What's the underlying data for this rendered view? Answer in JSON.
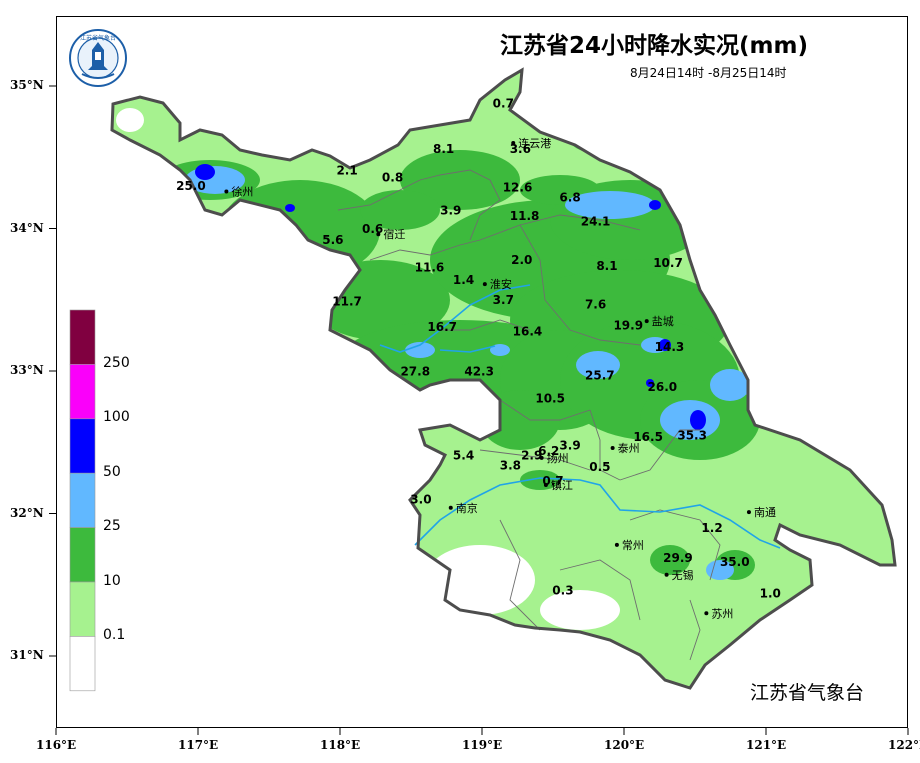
{
  "title": "江苏省24小时降水实况(mm)",
  "subtitle": "8月24日14时 -8月25日14时",
  "org": "江苏省气象台",
  "logo_text": "江苏省气象台",
  "colors": {
    "border": "#4d4d4d",
    "light_green": "#a6f28f",
    "green": "#3dba3d",
    "light_blue": "#61b8ff",
    "blue": "#0000ff",
    "magenta": "#fa00fa",
    "maroon": "#800040",
    "river": "#21a4e8",
    "white": "#ffffff"
  },
  "axes": {
    "x_ticks": [
      "116°E",
      "117°E",
      "118°E",
      "119°E",
      "120°E",
      "121°E",
      "122°E"
    ],
    "y_ticks": [
      "35°N",
      "34°N",
      "33°N",
      "32°N",
      "31°N"
    ]
  },
  "legend": {
    "labels": [
      "250",
      "100",
      "50",
      "25",
      "10",
      "0.1"
    ],
    "colors": [
      "#800040",
      "#fa00fa",
      "#0000ff",
      "#61b8ff",
      "#3dba3d",
      "#a6f28f",
      "#ffffff"
    ]
  },
  "cities": [
    {
      "name": "连云港",
      "lon": 119.22,
      "lat": 34.6
    },
    {
      "name": "徐州",
      "lon": 117.2,
      "lat": 34.26
    },
    {
      "name": "宿迁",
      "lon": 118.27,
      "lat": 33.96
    },
    {
      "name": "淮安",
      "lon": 119.02,
      "lat": 33.61
    },
    {
      "name": "盐城",
      "lon": 120.16,
      "lat": 33.35
    },
    {
      "name": "扬州",
      "lon": 119.42,
      "lat": 32.39
    },
    {
      "name": "泰州",
      "lon": 119.92,
      "lat": 32.46
    },
    {
      "name": "南京",
      "lon": 118.78,
      "lat": 32.04
    },
    {
      "name": "镇江",
      "lon": 119.45,
      "lat": 32.2
    },
    {
      "name": "南通",
      "lon": 120.88,
      "lat": 32.01
    },
    {
      "name": "常州",
      "lon": 119.95,
      "lat": 31.78
    },
    {
      "name": "无锡",
      "lon": 120.3,
      "lat": 31.57
    },
    {
      "name": "苏州",
      "lon": 120.58,
      "lat": 31.3
    }
  ],
  "rainfall": [
    {
      "value": "0.7",
      "lon": 119.15,
      "lat": 34.85
    },
    {
      "value": "8.1",
      "lon": 118.73,
      "lat": 34.53
    },
    {
      "value": "3.6",
      "lon": 119.27,
      "lat": 34.53
    },
    {
      "value": "2.1",
      "lon": 118.05,
      "lat": 34.38
    },
    {
      "value": "0.8",
      "lon": 118.37,
      "lat": 34.33
    },
    {
      "value": "25.0",
      "lon": 116.95,
      "lat": 34.27
    },
    {
      "value": "12.6",
      "lon": 119.25,
      "lat": 34.26
    },
    {
      "value": "6.8",
      "lon": 119.62,
      "lat": 34.19
    },
    {
      "value": "3.9",
      "lon": 118.78,
      "lat": 34.1
    },
    {
      "value": "11.8",
      "lon": 119.3,
      "lat": 34.06
    },
    {
      "value": "24.1",
      "lon": 119.8,
      "lat": 34.02
    },
    {
      "value": "0.6",
      "lon": 118.23,
      "lat": 33.97
    },
    {
      "value": "5.6",
      "lon": 117.95,
      "lat": 33.89
    },
    {
      "value": "11.6",
      "lon": 118.63,
      "lat": 33.7
    },
    {
      "value": "2.0",
      "lon": 119.28,
      "lat": 33.75
    },
    {
      "value": "8.1",
      "lon": 119.88,
      "lat": 33.71
    },
    {
      "value": "10.7",
      "lon": 120.31,
      "lat": 33.73
    },
    {
      "value": "1.4",
      "lon": 118.87,
      "lat": 33.61
    },
    {
      "value": "3.7",
      "lon": 119.15,
      "lat": 33.47
    },
    {
      "value": "7.6",
      "lon": 119.8,
      "lat": 33.44
    },
    {
      "value": "11.7",
      "lon": 118.05,
      "lat": 33.46
    },
    {
      "value": "16.7",
      "lon": 118.72,
      "lat": 33.28
    },
    {
      "value": "16.4",
      "lon": 119.32,
      "lat": 33.25
    },
    {
      "value": "19.9",
      "lon": 120.03,
      "lat": 33.29
    },
    {
      "value": "14.3",
      "lon": 120.32,
      "lat": 33.14
    },
    {
      "value": "27.8",
      "lon": 118.53,
      "lat": 32.97
    },
    {
      "value": "42.3",
      "lon": 118.98,
      "lat": 32.97
    },
    {
      "value": "25.7",
      "lon": 119.83,
      "lat": 32.94
    },
    {
      "value": "26.0",
      "lon": 120.27,
      "lat": 32.86
    },
    {
      "value": "10.5",
      "lon": 119.48,
      "lat": 32.78
    },
    {
      "value": "35.3",
      "lon": 120.48,
      "lat": 32.52
    },
    {
      "value": "16.5",
      "lon": 120.17,
      "lat": 32.51
    },
    {
      "value": "3.9",
      "lon": 119.62,
      "lat": 32.45
    },
    {
      "value": "6.2",
      "lon": 119.47,
      "lat": 32.41
    },
    {
      "value": "2.9",
      "lon": 119.35,
      "lat": 32.38
    },
    {
      "value": "5.4",
      "lon": 118.87,
      "lat": 32.38
    },
    {
      "value": "3.8",
      "lon": 119.2,
      "lat": 32.31
    },
    {
      "value": "0.5",
      "lon": 119.83,
      "lat": 32.3
    },
    {
      "value": "0.7",
      "lon": 119.5,
      "lat": 32.2
    },
    {
      "value": "3.0",
      "lon": 118.57,
      "lat": 32.07
    },
    {
      "value": "1.2",
      "lon": 120.62,
      "lat": 31.87
    },
    {
      "value": "29.9",
      "lon": 120.38,
      "lat": 31.66
    },
    {
      "value": "35.0",
      "lon": 120.78,
      "lat": 31.63
    },
    {
      "value": "0.3",
      "lon": 119.57,
      "lat": 31.43
    },
    {
      "value": "1.0",
      "lon": 121.03,
      "lat": 31.41
    }
  ]
}
